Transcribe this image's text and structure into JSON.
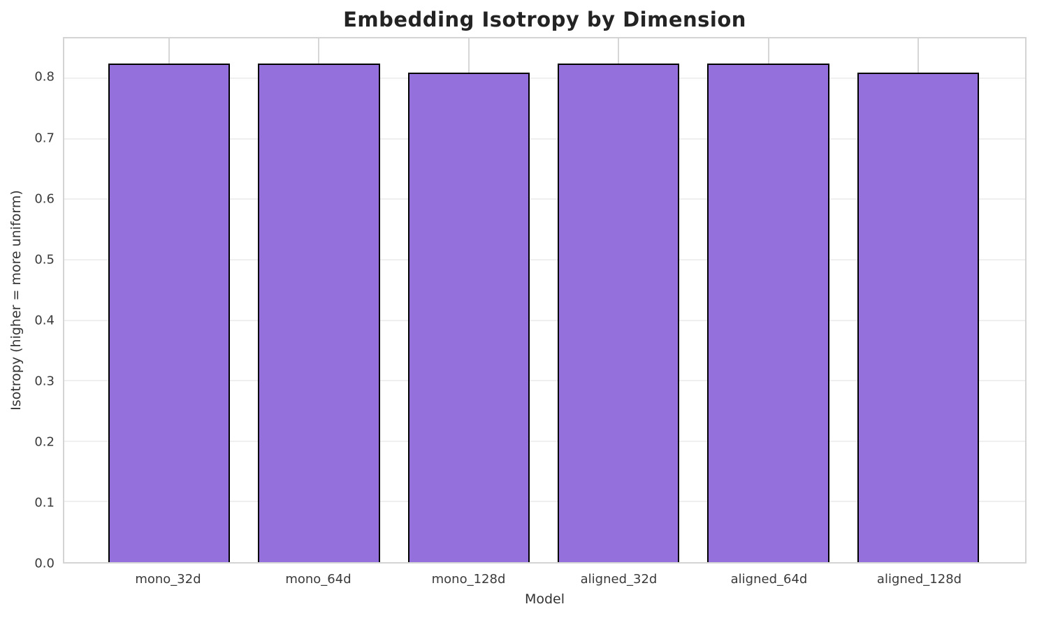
{
  "chart_data": {
    "type": "bar",
    "title": "Embedding Isotropy by Dimension",
    "xlabel": "Model",
    "ylabel": "Isotropy (higher = more uniform)",
    "categories": [
      "mono_32d",
      "mono_64d",
      "mono_128d",
      "aligned_32d",
      "aligned_64d",
      "aligned_128d"
    ],
    "values": [
      0.825,
      0.825,
      0.81,
      0.825,
      0.825,
      0.81
    ],
    "ylim": [
      0,
      0.866
    ],
    "yticks": [
      "0.0",
      "0.1",
      "0.2",
      "0.3",
      "0.4",
      "0.5",
      "0.6",
      "0.7",
      "0.8"
    ],
    "grid": "both",
    "legend_position": "none",
    "bar_color": "#9370DB",
    "bar_edge_color": "#000000"
  }
}
